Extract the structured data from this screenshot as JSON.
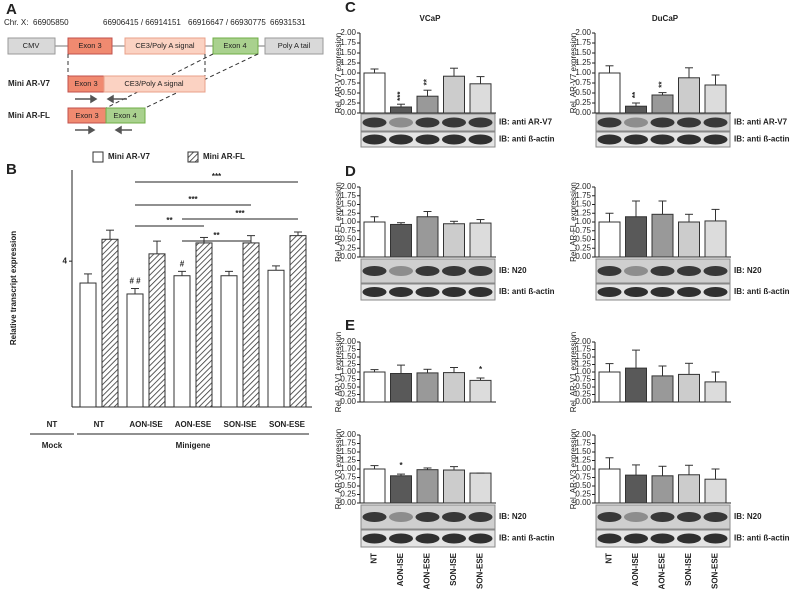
{
  "panel_labels": [
    "A",
    "B",
    "C",
    "D",
    "E"
  ],
  "diagram": {
    "chromosome": "Chr. X:",
    "coordinates": [
      "66905850",
      "66906415 / 66914151",
      "66916647 / 66930775",
      "66931531"
    ],
    "construct": {
      "promoter": "CMV",
      "exon3": "Exon 3",
      "cryptic": "CE3/Poly A signal",
      "exon4": "Exon 4",
      "tail": "Poly A tail"
    },
    "mini_v7": {
      "label": "Mini AR-V7",
      "exon3": "Exon 3",
      "cryptic": "CE3/Poly A signal"
    },
    "mini_fl": {
      "label": "Mini AR-FL",
      "exon3": "Exon 3",
      "exon4": "Exon 4"
    }
  },
  "chart_data": [
    {
      "type": "bar",
      "y_label": "Relative transcript expression",
      "categories": [
        "NT",
        "NT",
        "AON-ISE",
        "AON-ESE",
        "SON-ISE",
        "SON-ESE"
      ],
      "groups": [
        {
          "name": "Mock",
          "span": [
            0,
            0
          ]
        },
        {
          "name": "Minigene",
          "span": [
            1,
            5
          ]
        }
      ],
      "series": [
        {
          "name": "Mini AR-V7",
          "color": "#ffffff",
          "values": [
            null,
            3.4,
            3.1,
            3.6,
            3.6,
            3.75
          ],
          "errors": [
            null,
            0.25,
            0.15,
            0.12,
            0.12,
            0.12
          ],
          "significance": [
            null,
            null,
            "# #",
            "#",
            null,
            null
          ]
        },
        {
          "name": "Mini AR-FL",
          "color": "hatch",
          "values": [
            null,
            4.6,
            4.2,
            4.5,
            4.5,
            4.7
          ],
          "errors": [
            null,
            0.25,
            0.35,
            0.15,
            0.2,
            0.1
          ],
          "significance": [
            null,
            null,
            null,
            null,
            null,
            null
          ]
        }
      ],
      "brackets": [
        {
          "text": "***",
          "from": 2,
          "to": 5
        },
        {
          "text": "***",
          "from": 2,
          "to": 4
        },
        {
          "text": "***",
          "from": 3,
          "to": 5
        },
        {
          "text": "**",
          "from": 2,
          "to": 3
        },
        {
          "text": "**",
          "from": 3,
          "to": 4
        }
      ],
      "ylim": [
        0,
        6.5
      ],
      "yticks": [
        4
      ],
      "legend": "top"
    },
    {
      "type": "bar",
      "title": "VCaP",
      "y_label": "Rel. AR-V7 expression",
      "values": [
        1.0,
        0.15,
        0.42,
        0.92,
        0.73
      ],
      "errors": [
        0.1,
        0.07,
        0.15,
        0.2,
        0.18
      ],
      "significance": [
        null,
        "***",
        "**",
        null,
        null
      ],
      "colors": [
        "#ffffff",
        "#595959",
        "#999999",
        "#cccccc",
        "#dcdcdc"
      ],
      "blot_labels": [
        "IB: anti AR-V7",
        "IB: anti ß-actin"
      ],
      "ylim": [
        0,
        2
      ],
      "yticks": [
        {
          "value": 0,
          "label": "0.00"
        },
        {
          "value": 0.25,
          "label": "0.25"
        },
        {
          "value": 0.5,
          "label": "0.50"
        },
        {
          "value": 0.75,
          "label": "0.75"
        },
        {
          "value": 1,
          "label": "1.00"
        },
        {
          "value": 1.25,
          "label": "1.25"
        },
        {
          "value": 1.5,
          "label": "1.50"
        },
        {
          "value": 1.75,
          "label": "1.75"
        },
        {
          "value": 2,
          "label": "2.00"
        }
      ]
    },
    {
      "type": "bar",
      "title": "DuCaP",
      "y_label": "Rel. AR-V7 expression",
      "values": [
        1.0,
        0.17,
        0.45,
        0.88,
        0.7
      ],
      "errors": [
        0.18,
        0.08,
        0.06,
        0.25,
        0.25
      ],
      "significance": [
        null,
        "**",
        "**",
        null,
        null
      ],
      "colors": [
        "#ffffff",
        "#595959",
        "#999999",
        "#cccccc",
        "#dcdcdc"
      ],
      "blot_labels": [
        "IB: anti AR-V7",
        "IB: anti ß-actin"
      ],
      "ylim": [
        0,
        2
      ],
      "yticks": [
        {
          "value": 0,
          "label": "0.00"
        },
        {
          "value": 0.25,
          "label": "0.25"
        },
        {
          "value": 0.5,
          "label": "0.50"
        },
        {
          "value": 0.75,
          "label": "0.75"
        },
        {
          "value": 1,
          "label": "1.00"
        },
        {
          "value": 1.25,
          "label": "1.25"
        },
        {
          "value": 1.5,
          "label": "1.50"
        },
        {
          "value": 1.75,
          "label": "1.75"
        },
        {
          "value": 2,
          "label": "2.00"
        }
      ]
    },
    {
      "type": "bar",
      "y_label": "Rel. AR-FL expression",
      "values": [
        1.0,
        0.93,
        1.15,
        0.95,
        0.97
      ],
      "errors": [
        0.15,
        0.05,
        0.15,
        0.07,
        0.1
      ],
      "colors": [
        "#ffffff",
        "#595959",
        "#999999",
        "#cccccc",
        "#dcdcdc"
      ],
      "blot_labels": [
        "IB: N20",
        "IB: anti ß-actin"
      ],
      "ylim": [
        0,
        2
      ],
      "yticks": [
        {
          "value": 0,
          "label": "0.00"
        },
        {
          "value": 0.25,
          "label": "0.25"
        },
        {
          "value": 0.5,
          "label": "0.50"
        },
        {
          "value": 0.75,
          "label": "0.75"
        },
        {
          "value": 1,
          "label": "1.00"
        },
        {
          "value": 1.25,
          "label": "1.25"
        },
        {
          "value": 1.5,
          "label": "1.50"
        },
        {
          "value": 1.75,
          "label": "1.75"
        },
        {
          "value": 2,
          "label": "2.00"
        }
      ]
    },
    {
      "type": "bar",
      "y_label": "Rel. AR-FL expression",
      "values": [
        1.0,
        1.15,
        1.22,
        1.0,
        1.03
      ],
      "errors": [
        0.25,
        0.45,
        0.38,
        0.22,
        0.33
      ],
      "colors": [
        "#ffffff",
        "#595959",
        "#999999",
        "#cccccc",
        "#dcdcdc"
      ],
      "blot_labels": [
        "IB: N20",
        "IB: anti ß-actin"
      ],
      "ylim": [
        0,
        2
      ],
      "yticks": [
        {
          "value": 0,
          "label": "0.00"
        },
        {
          "value": 0.25,
          "label": "0.25"
        },
        {
          "value": 0.5,
          "label": "0.50"
        },
        {
          "value": 0.75,
          "label": "0.75"
        },
        {
          "value": 1,
          "label": "1.00"
        },
        {
          "value": 1.25,
          "label": "1.25"
        },
        {
          "value": 1.5,
          "label": "1.50"
        },
        {
          "value": 1.75,
          "label": "1.75"
        },
        {
          "value": 2,
          "label": "2.00"
        }
      ]
    },
    {
      "type": "bar",
      "y_label": "Rel. AR-V1 expression",
      "values": [
        1.0,
        0.95,
        0.97,
        0.98,
        0.72
      ],
      "errors": [
        0.08,
        0.28,
        0.12,
        0.17,
        0.08
      ],
      "significance": [
        null,
        null,
        null,
        null,
        "*"
      ],
      "colors": [
        "#ffffff",
        "#595959",
        "#999999",
        "#cccccc",
        "#dcdcdc"
      ],
      "ylim": [
        0,
        2
      ],
      "yticks": [
        {
          "value": 0,
          "label": "0.00"
        },
        {
          "value": 0.25,
          "label": "0.25"
        },
        {
          "value": 0.5,
          "label": "0.50"
        },
        {
          "value": 0.75,
          "label": "0.75"
        },
        {
          "value": 1,
          "label": "1.00"
        },
        {
          "value": 1.25,
          "label": "1.25"
        },
        {
          "value": 1.5,
          "label": "1.50"
        },
        {
          "value": 1.75,
          "label": "1.75"
        },
        {
          "value": 2,
          "label": "2.00"
        }
      ]
    },
    {
      "type": "bar",
      "y_label": "Rel. AR-V1 expression",
      "values": [
        1.0,
        1.13,
        0.87,
        0.92,
        0.67
      ],
      "errors": [
        0.28,
        0.6,
        0.33,
        0.37,
        0.33
      ],
      "colors": [
        "#ffffff",
        "#595959",
        "#999999",
        "#cccccc",
        "#dcdcdc"
      ],
      "ylim": [
        0,
        2
      ],
      "yticks": [
        {
          "value": 0,
          "label": "0.00"
        },
        {
          "value": 0.25,
          "label": "0.25"
        },
        {
          "value": 0.5,
          "label": "0.50"
        },
        {
          "value": 0.75,
          "label": "0.75"
        },
        {
          "value": 1,
          "label": "1.00"
        },
        {
          "value": 1.25,
          "label": "1.25"
        },
        {
          "value": 1.5,
          "label": "1.50"
        },
        {
          "value": 1.75,
          "label": "1.75"
        },
        {
          "value": 2,
          "label": "2.00"
        }
      ]
    },
    {
      "type": "bar",
      "y_label": "Rel. AR-V3 expression",
      "categories": [
        "NT",
        "AON-ISE",
        "AON-ESE",
        "SON-ISE",
        "SON-ESE"
      ],
      "values": [
        1.0,
        0.8,
        0.98,
        0.97,
        0.88
      ],
      "errors": [
        0.1,
        0.05,
        0.05,
        0.1,
        0
      ],
      "significance": [
        null,
        "*",
        null,
        null,
        null
      ],
      "colors": [
        "#ffffff",
        "#595959",
        "#999999",
        "#cccccc",
        "#dcdcdc"
      ],
      "blot_labels": [
        "IB: N20",
        "IB: anti ß-actin"
      ],
      "ylim": [
        0,
        2
      ],
      "yticks": [
        {
          "value": 0,
          "label": "0.00"
        },
        {
          "value": 0.25,
          "label": "0.25"
        },
        {
          "value": 0.5,
          "label": "0.50"
        },
        {
          "value": 0.75,
          "label": "0.75"
        },
        {
          "value": 1,
          "label": "1.00"
        },
        {
          "value": 1.25,
          "label": "1.25"
        },
        {
          "value": 1.5,
          "label": "1.50"
        },
        {
          "value": 1.75,
          "label": "1.75"
        },
        {
          "value": 2,
          "label": "2.00"
        }
      ]
    },
    {
      "type": "bar",
      "y_label": "Rel. AR-V3 expression",
      "categories": [
        "NT",
        "AON-ISE",
        "AON-ESE",
        "SON-ISE",
        "SON-ESE"
      ],
      "values": [
        1.0,
        0.82,
        0.8,
        0.83,
        0.7
      ],
      "errors": [
        0.33,
        0.3,
        0.28,
        0.28,
        0.3
      ],
      "colors": [
        "#ffffff",
        "#595959",
        "#999999",
        "#cccccc",
        "#dcdcdc"
      ],
      "blot_labels": [
        "IB: N20",
        "IB: anti ß-actin"
      ],
      "ylim": [
        0,
        2
      ],
      "yticks": [
        {
          "value": 0,
          "label": "0.00"
        },
        {
          "value": 0.25,
          "label": "0.25"
        },
        {
          "value": 0.5,
          "label": "0.50"
        },
        {
          "value": 0.75,
          "label": "0.75"
        },
        {
          "value": 1,
          "label": "1.00"
        },
        {
          "value": 1.25,
          "label": "1.25"
        },
        {
          "value": 1.5,
          "label": "1.50"
        },
        {
          "value": 1.75,
          "label": "1.75"
        },
        {
          "value": 2,
          "label": "2.00"
        }
      ]
    }
  ]
}
